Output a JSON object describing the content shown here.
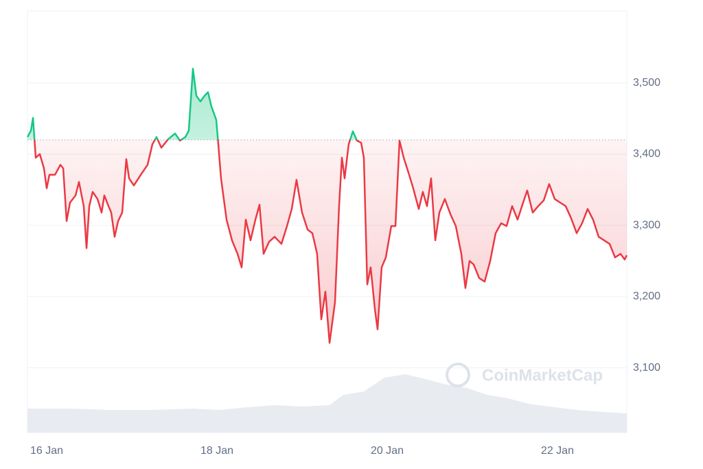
{
  "chart_data": {
    "type": "line",
    "watermark": "CoinMarketCap",
    "xlim": [
      15.774,
      22.815
    ],
    "ylim": [
      3009,
      3601
    ],
    "xticks": [
      {
        "value": 16,
        "label": "16 Jan"
      },
      {
        "value": 18,
        "label": "18 Jan"
      },
      {
        "value": 20,
        "label": "20 Jan"
      },
      {
        "value": 22,
        "label": "22 Jan"
      }
    ],
    "yticks": [
      {
        "value": 3100,
        "label": "3,100"
      },
      {
        "value": 3200,
        "label": "3,200"
      },
      {
        "value": 3300,
        "label": "3,300"
      },
      {
        "value": 3400,
        "label": "3,400"
      },
      {
        "value": 3500,
        "label": "3,500"
      }
    ],
    "grid": true,
    "baseline": 3420,
    "up_color": "#16c784",
    "down_color": "#ea3943",
    "x": [
      15.774,
      15.815,
      15.839,
      15.871,
      15.919,
      15.968,
      16,
      16.032,
      16.097,
      16.161,
      16.194,
      16.234,
      16.274,
      16.339,
      16.379,
      16.435,
      16.468,
      16.5,
      16.54,
      16.597,
      16.645,
      16.677,
      16.726,
      16.758,
      16.798,
      16.839,
      16.887,
      16.935,
      16.968,
      17.024,
      17.105,
      17.185,
      17.242,
      17.29,
      17.347,
      17.427,
      17.508,
      17.565,
      17.629,
      17.669,
      17.718,
      17.758,
      17.806,
      17.855,
      17.895,
      17.935,
      17.992,
      18.016,
      18.048,
      18.113,
      18.177,
      18.242,
      18.29,
      18.339,
      18.395,
      18.452,
      18.5,
      18.548,
      18.613,
      18.677,
      18.758,
      18.823,
      18.879,
      18.935,
      19.0,
      19.065,
      19.121,
      19.177,
      19.226,
      19.274,
      19.323,
      19.387,
      19.435,
      19.468,
      19.5,
      19.548,
      19.597,
      19.645,
      19.694,
      19.726,
      19.766,
      19.806,
      19.855,
      19.887,
      19.935,
      19.984,
      20.048,
      20.097,
      20.145,
      20.194,
      20.258,
      20.306,
      20.371,
      20.419,
      20.468,
      20.516,
      20.565,
      20.613,
      20.677,
      20.742,
      20.806,
      20.871,
      20.919,
      20.968,
      21.016,
      21.081,
      21.145,
      21.21,
      21.274,
      21.339,
      21.403,
      21.468,
      21.532,
      21.597,
      21.645,
      21.71,
      21.774,
      21.839,
      21.903,
      21.968,
      22.032,
      22.097,
      22.161,
      22.226,
      22.29,
      22.355,
      22.419,
      22.484,
      22.548,
      22.613,
      22.677,
      22.742,
      22.79,
      22.815
    ],
    "values": [
      3424,
      3433,
      3451,
      3395,
      3400,
      3380,
      3352,
      3371,
      3371,
      3385,
      3380,
      3306,
      3332,
      3342,
      3361,
      3327,
      3268,
      3327,
      3347,
      3337,
      3318,
      3342,
      3327,
      3318,
      3284,
      3306,
      3318,
      3393,
      3366,
      3356,
      3371,
      3385,
      3414,
      3424,
      3409,
      3421,
      3429,
      3419,
      3424,
      3433,
      3520,
      3482,
      3474,
      3482,
      3487,
      3467,
      3448,
      3414,
      3366,
      3308,
      3279,
      3260,
      3241,
      3308,
      3279,
      3308,
      3329,
      3260,
      3277,
      3284,
      3274,
      3299,
      3323,
      3364,
      3318,
      3294,
      3289,
      3260,
      3168,
      3207,
      3135,
      3192,
      3327,
      3395,
      3366,
      3414,
      3432,
      3419,
      3416,
      3395,
      3217,
      3241,
      3183,
      3154,
      3241,
      3255,
      3299,
      3299,
      3419,
      3395,
      3371,
      3352,
      3323,
      3347,
      3327,
      3366,
      3279,
      3318,
      3337,
      3316,
      3299,
      3260,
      3212,
      3250,
      3245,
      3226,
      3221,
      3250,
      3289,
      3303,
      3299,
      3327,
      3308,
      3332,
      3349,
      3318,
      3327,
      3335,
      3358,
      3337,
      3332,
      3327,
      3310,
      3289,
      3303,
      3323,
      3308,
      3284,
      3279,
      3274,
      3255,
      3260,
      3252,
      3258
    ],
    "volume": {
      "x": [
        15.774,
        16.258,
        16.742,
        17.226,
        17.71,
        18.032,
        18.355,
        18.677,
        19.0,
        19.323,
        19.484,
        19.726,
        19.968,
        20.21,
        20.452,
        20.694,
        20.935,
        21.177,
        21.419,
        21.661,
        21.903,
        22.226,
        22.548,
        22.815
      ],
      "values": [
        35,
        35,
        33,
        33,
        35,
        33,
        37,
        40,
        38,
        40,
        55,
        60,
        80,
        85,
        78,
        70,
        65,
        55,
        50,
        42,
        38,
        33,
        30,
        28
      ],
      "lim": [
        0,
        100
      ],
      "color": "#e8ecf1"
    }
  }
}
